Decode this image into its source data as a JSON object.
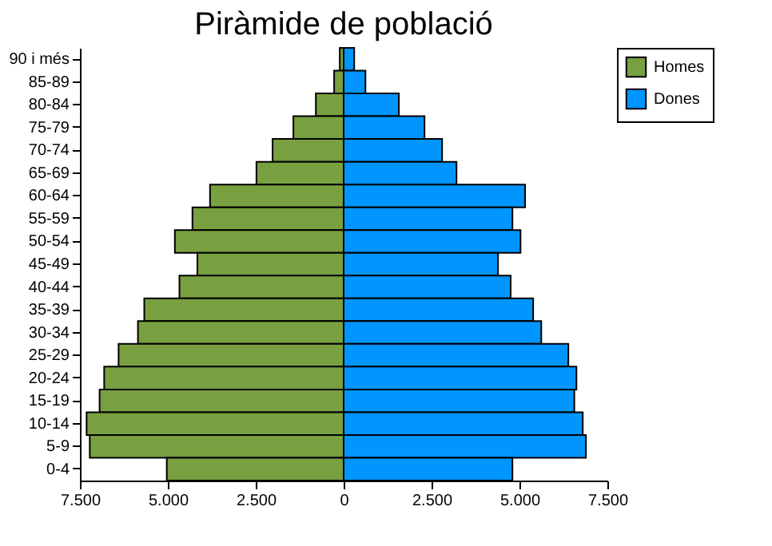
{
  "chart_data": {
    "type": "bar",
    "orientation": "horizontal",
    "title": "Piràmide de població",
    "categories": [
      "90 i més",
      "85-89",
      "80-84",
      "75-79",
      "70-74",
      "65-69",
      "60-64",
      "55-59",
      "50-54",
      "45-49",
      "40-44",
      "35-39",
      "30-34",
      "25-29",
      "20-24",
      "15-19",
      "10-14",
      "5-9",
      "0-4"
    ],
    "series": [
      {
        "name": "Homes",
        "color": "#78a040",
        "values": [
          -110,
          -270,
          -790,
          -1430,
          -2020,
          -2480,
          -3800,
          -4300,
          -4800,
          -4160,
          -4670,
          -5670,
          -5850,
          -6400,
          -6810,
          -6940,
          -7310,
          -7220,
          -5030
        ]
      },
      {
        "name": "Dones",
        "color": "#0095ff",
        "values": [
          300,
          620,
          1570,
          2300,
          2800,
          3210,
          5160,
          4800,
          5030,
          4390,
          4750,
          5390,
          5620,
          6390,
          6620,
          6560,
          6800,
          6890,
          4800
        ]
      }
    ],
    "xlim": [
      -7500,
      7500
    ],
    "xticks": [
      {
        "value": -7500,
        "label": "7.500"
      },
      {
        "value": -5000,
        "label": "5.000"
      },
      {
        "value": -2500,
        "label": "2.500"
      },
      0,
      {
        "value": 2500,
        "label": "2.500"
      },
      {
        "value": 5000,
        "label": "5.000"
      },
      {
        "value": 7500,
        "label": "7.500"
      }
    ],
    "grid": false,
    "legend": "right",
    "stacked": true
  }
}
